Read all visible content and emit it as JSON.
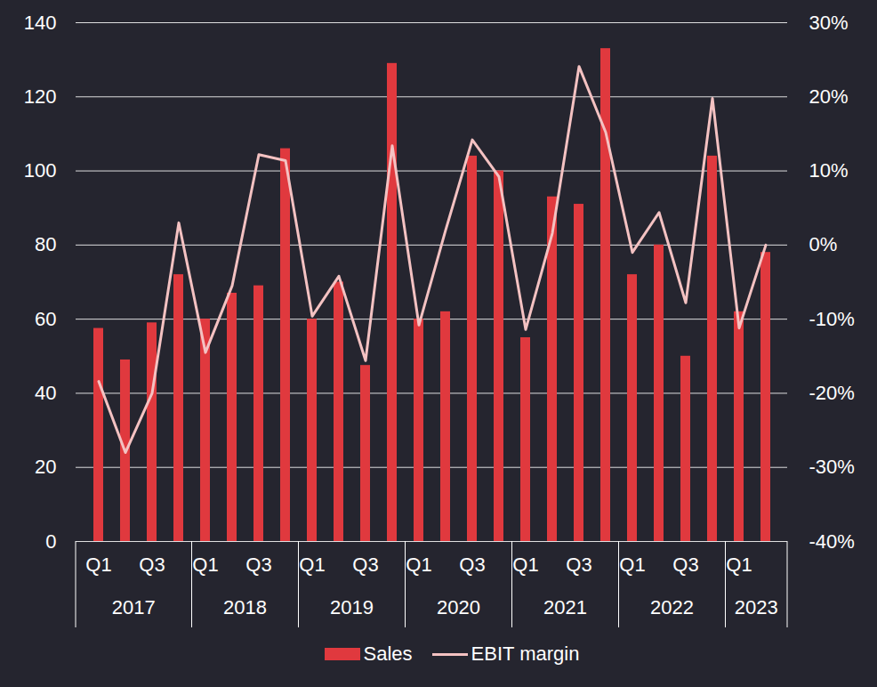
{
  "chart_data": {
    "type": "bar",
    "categories": [
      "Q1",
      null,
      "Q3",
      null,
      "Q1",
      null,
      "Q3",
      null,
      "Q1",
      null,
      "Q3",
      null,
      "Q1",
      null,
      "Q3",
      null,
      "Q1",
      null,
      "Q3",
      null,
      "Q1",
      null,
      "Q3",
      null,
      "Q1",
      null
    ],
    "category_groups": [
      "2017",
      "2017",
      "2017",
      "2017",
      "2018",
      "2018",
      "2018",
      "2018",
      "2019",
      "2019",
      "2019",
      "2019",
      "2020",
      "2020",
      "2020",
      "2020",
      "2021",
      "2021",
      "2021",
      "2021",
      "2022",
      "2022",
      "2022",
      "2022",
      "2023",
      "2023"
    ],
    "series": [
      {
        "name": "Sales",
        "type": "bar",
        "color": "#e0393e",
        "values": [
          57.5,
          49,
          59,
          72,
          60,
          67,
          69,
          106,
          60,
          70,
          47.5,
          129,
          60,
          62,
          104,
          100,
          55,
          93,
          91,
          133,
          72,
          80,
          50,
          104,
          62,
          78
        ]
      },
      {
        "name": "EBIT margin",
        "type": "line",
        "axis": "y2",
        "color": "#f4c2c2",
        "values": [
          -18.4,
          -28,
          -20,
          3,
          -14.5,
          -5.5,
          12.2,
          11.4,
          -9.6,
          -4.2,
          -15.6,
          13.4,
          -10.8,
          2,
          14.2,
          9.2,
          -11.4,
          1.6,
          24.1,
          15.2,
          -1,
          4.4,
          -7.8,
          19.8,
          -11.2,
          0
        ]
      }
    ],
    "ylim": [
      0,
      140
    ],
    "yticks": [
      0,
      20,
      40,
      60,
      80,
      100,
      120,
      140
    ],
    "y2lim": [
      -40,
      30
    ],
    "y2ticks": [
      {
        "value": -40,
        "label": "-40%"
      },
      {
        "value": -30,
        "label": "-30%"
      },
      {
        "value": -20,
        "label": "-20%"
      },
      {
        "value": -10,
        "label": "-10%"
      },
      {
        "value": 0,
        "label": "0%"
      },
      {
        "value": 10,
        "label": "10%"
      },
      {
        "value": 20,
        "label": "20%"
      },
      {
        "value": 30,
        "label": "30%"
      }
    ],
    "grid": true,
    "legend": "bottom"
  }
}
